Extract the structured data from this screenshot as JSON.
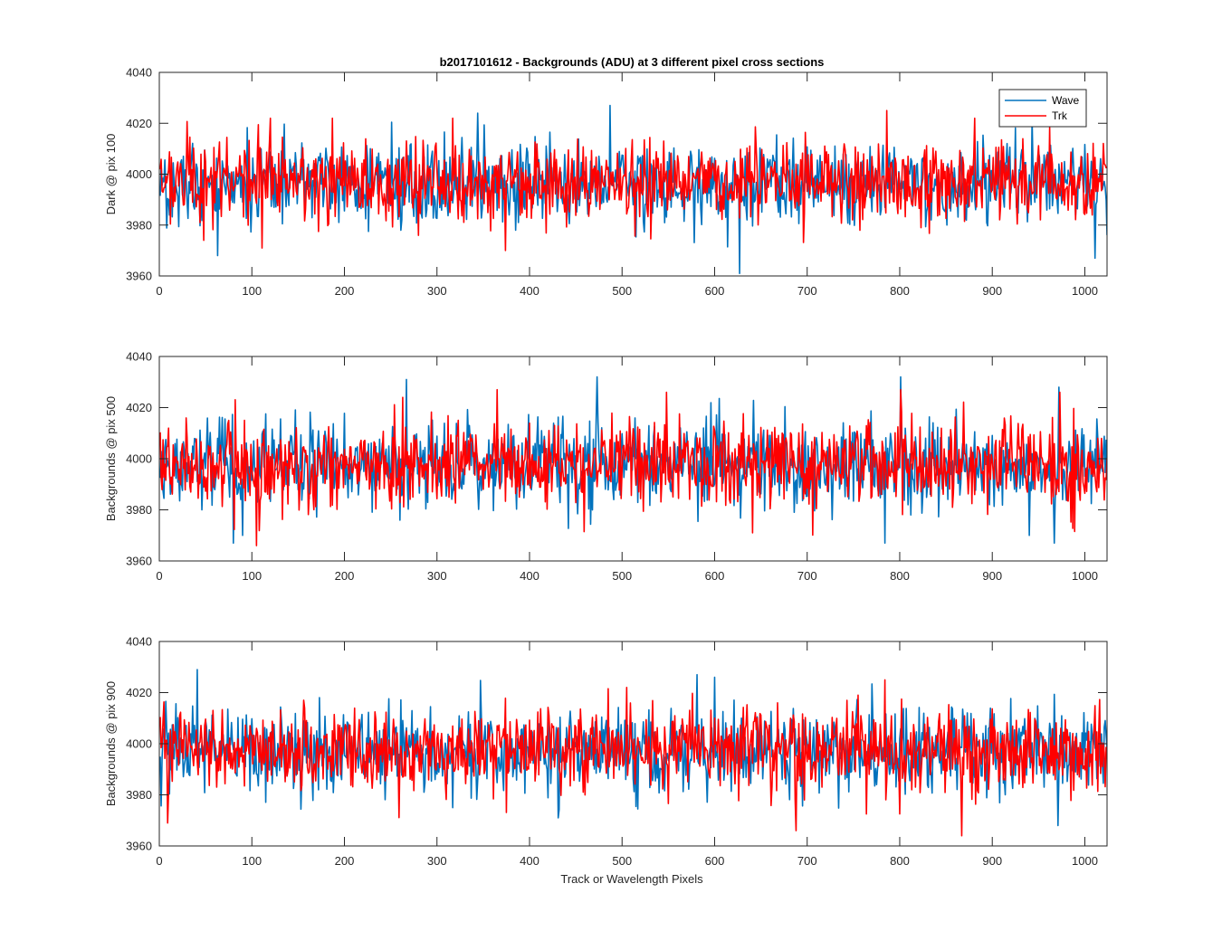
{
  "figure": {
    "title": "b2017101612 - Backgrounds (ADU) at 3 different pixel cross sections",
    "xlabel": "Track or Wavelength Pixels"
  },
  "chart_data": [
    {
      "type": "line",
      "title": "b2017101612 - Backgrounds (ADU) at 3 different pixel cross sections",
      "xlabel": "",
      "ylabel": "Dark @ pix 100",
      "xlim": [
        0,
        1024
      ],
      "ylim": [
        3960,
        4040
      ],
      "xticks": [
        "0",
        "100",
        "200",
        "300",
        "400",
        "500",
        "600",
        "700",
        "800",
        "900",
        "1000"
      ],
      "yticks": [
        "3960",
        "3980",
        "4000",
        "4020",
        "4040"
      ],
      "legend": {
        "placement": "top-right",
        "entries": [
          "Wave",
          "Trk"
        ]
      },
      "series": [
        {
          "name": "Wave",
          "color": "#0072BD",
          "n_points": 1024,
          "mean": 3996,
          "std": 7.5,
          "min": 3961,
          "max": 4027,
          "peaks": [
            [
              62,
              3968
            ],
            [
              343,
              4024
            ],
            [
              486,
              4027
            ],
            [
              626,
              3961
            ],
            [
              1010,
              3967
            ]
          ]
        },
        {
          "name": "Trk",
          "color": "#FF0000",
          "n_points": 1024,
          "mean": 3997,
          "std": 7.5,
          "min": 3970,
          "max": 4025,
          "peaks": [
            [
              47,
              3974
            ],
            [
              110,
              3971
            ],
            [
              119,
              4022
            ],
            [
              186,
              4022
            ],
            [
              373,
              3970
            ],
            [
              785,
              4025
            ],
            [
              880,
              4022
            ]
          ]
        }
      ]
    },
    {
      "type": "line",
      "xlabel": "",
      "ylabel": "Backgrounds @ pix 500",
      "xlim": [
        0,
        1024
      ],
      "ylim": [
        3960,
        4040
      ],
      "xticks": [
        "0",
        "100",
        "200",
        "300",
        "400",
        "500",
        "600",
        "700",
        "800",
        "900",
        "1000"
      ],
      "yticks": [
        "3960",
        "3980",
        "4000",
        "4020",
        "4040"
      ],
      "series": [
        {
          "name": "Wave",
          "color": "#0072BD",
          "n_points": 1024,
          "mean": 3997,
          "std": 8,
          "min": 3967,
          "max": 4032,
          "peaks": [
            [
              79,
              3967
            ],
            [
              266,
              4031
            ],
            [
              472,
              4032
            ],
            [
              783,
              3967
            ],
            [
              800,
              4032
            ],
            [
              966,
              3967
            ],
            [
              971,
              4028
            ]
          ]
        },
        {
          "name": "Trk",
          "color": "#FF0000",
          "n_points": 1024,
          "mean": 3998,
          "std": 8,
          "min": 3966,
          "max": 4027,
          "peaks": [
            [
              104,
              3966
            ],
            [
              364,
              4027
            ],
            [
              547,
              4026
            ],
            [
              640,
              3971
            ],
            [
              800,
              4027
            ],
            [
              972,
              4026
            ]
          ]
        }
      ]
    },
    {
      "type": "line",
      "xlabel": "Track or Wavelength Pixels",
      "ylabel": "Backgrounds @ pix 900",
      "xlim": [
        0,
        1024
      ],
      "ylim": [
        3960,
        4040
      ],
      "xticks": [
        "0",
        "100",
        "200",
        "300",
        "400",
        "500",
        "600",
        "700",
        "800",
        "900",
        "1000"
      ],
      "yticks": [
        "3960",
        "3980",
        "4000",
        "4020",
        "4040"
      ],
      "series": [
        {
          "name": "Wave",
          "color": "#0072BD",
          "n_points": 1024,
          "mean": 3997,
          "std": 8,
          "min": 3968,
          "max": 4029,
          "peaks": [
            [
              40,
              4029
            ],
            [
              580,
              4027
            ],
            [
              599,
              4026
            ],
            [
              970,
              3968
            ]
          ]
        },
        {
          "name": "Trk",
          "color": "#FF0000",
          "n_points": 1024,
          "mean": 3998,
          "std": 8,
          "min": 3964,
          "max": 4025,
          "peaks": [
            [
              8,
              3969
            ],
            [
              687,
              3966
            ],
            [
              783,
              4025
            ],
            [
              866,
              3964
            ]
          ]
        }
      ]
    }
  ]
}
